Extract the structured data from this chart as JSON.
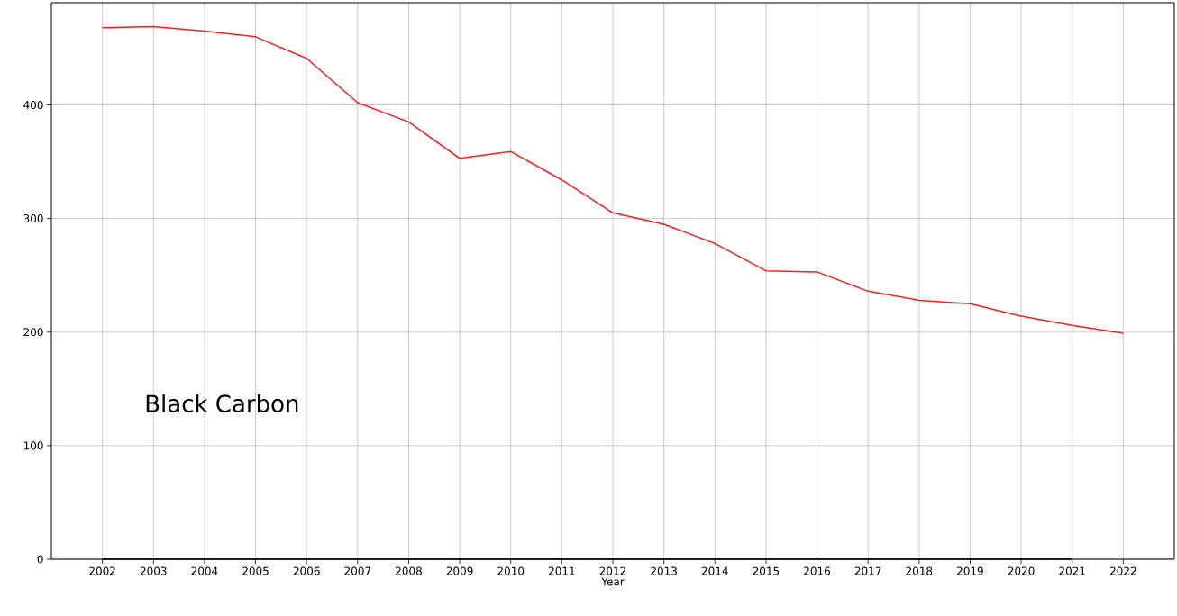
{
  "chart_data": {
    "type": "line",
    "xlabel": "Year",
    "x": [
      2002,
      2003,
      2004,
      2005,
      2006,
      2007,
      2008,
      2009,
      2010,
      2011,
      2012,
      2013,
      2014,
      2015,
      2016,
      2017,
      2018,
      2019,
      2020,
      2021,
      2022
    ],
    "series": [
      {
        "color": "#ff1a1a",
        "values": [
          468,
          469,
          465,
          460,
          441,
          402,
          385,
          353,
          359,
          334,
          305,
          295,
          278,
          254,
          253,
          236,
          228,
          225,
          214,
          206,
          199
        ]
      },
      {
        "color": "#000000",
        "values": [
          0,
          0,
          0,
          0,
          0,
          0,
          0,
          0,
          0,
          0,
          0,
          0,
          0,
          0,
          0,
          0,
          0,
          0,
          0,
          0,
          null
        ]
      }
    ],
    "xlim": [
      2001,
      2023
    ],
    "ylim": [
      0,
      490
    ],
    "xticks": [
      2002,
      2003,
      2004,
      2005,
      2006,
      2007,
      2008,
      2009,
      2010,
      2011,
      2012,
      2013,
      2014,
      2015,
      2016,
      2017,
      2018,
      2019,
      2020,
      2021,
      2022
    ],
    "yticks": [
      0,
      100,
      200,
      300,
      400
    ],
    "grid": true,
    "annotations": [
      "Black Carbon"
    ]
  }
}
